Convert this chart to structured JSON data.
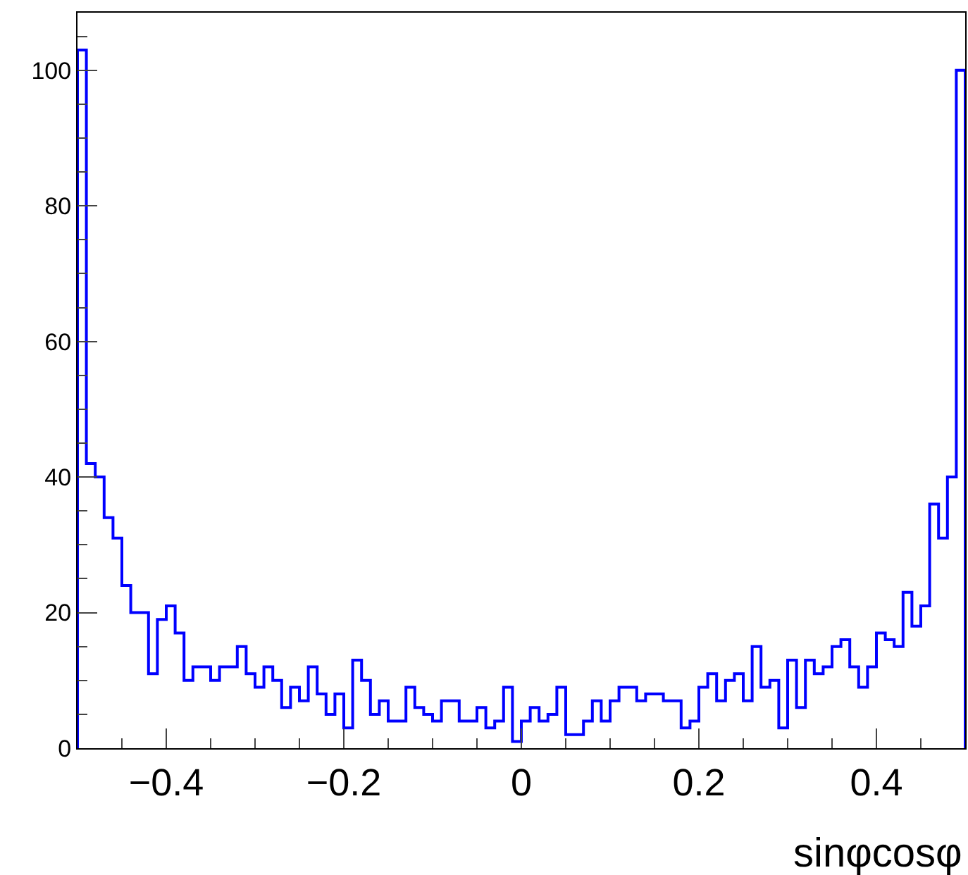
{
  "chart_data": {
    "type": "histogram",
    "xlabel": "sinφcosφ",
    "bins": [
      -0.5,
      -0.49,
      -0.48,
      -0.47,
      -0.46,
      -0.45,
      -0.44,
      -0.43,
      -0.42,
      -0.41,
      -0.4,
      -0.39,
      -0.38,
      -0.37,
      -0.36,
      -0.35,
      -0.34,
      -0.33,
      -0.32,
      -0.31,
      -0.3,
      -0.29,
      -0.28,
      -0.27,
      -0.26,
      -0.25,
      -0.24,
      -0.23,
      -0.22,
      -0.21,
      -0.2,
      -0.19,
      -0.18,
      -0.17,
      -0.16,
      -0.15,
      -0.14,
      -0.13,
      -0.12,
      -0.11,
      -0.1,
      -0.09,
      -0.08,
      -0.07,
      -0.06,
      -0.05,
      -0.04,
      -0.03,
      -0.02,
      -0.01,
      0,
      0.01,
      0.02,
      0.03,
      0.04,
      0.05,
      0.06,
      0.07,
      0.08,
      0.09,
      0.1,
      0.11,
      0.12,
      0.13,
      0.14,
      0.15,
      0.16,
      0.17,
      0.18,
      0.19,
      0.2,
      0.21,
      0.22,
      0.23,
      0.24,
      0.25,
      0.26,
      0.27,
      0.28,
      0.29,
      0.3,
      0.31,
      0.32,
      0.33,
      0.34,
      0.35,
      0.36,
      0.37,
      0.38,
      0.39,
      0.4,
      0.41,
      0.42,
      0.43,
      0.44,
      0.45,
      0.46,
      0.47,
      0.48,
      0.49,
      0.5
    ],
    "values": [
      103,
      42,
      40,
      34,
      31,
      24,
      20,
      20,
      11,
      19,
      21,
      17,
      10,
      12,
      12,
      10,
      12,
      12,
      15,
      11,
      9,
      12,
      10,
      6,
      9,
      7,
      12,
      8,
      5,
      8,
      3,
      13,
      10,
      5,
      7,
      4,
      4,
      9,
      6,
      5,
      4,
      7,
      7,
      4,
      4,
      6,
      3,
      4,
      9,
      1,
      4,
      6,
      4,
      5,
      9,
      2,
      2,
      4,
      7,
      4,
      7,
      9,
      9,
      7,
      8,
      8,
      7,
      7,
      3,
      4,
      9,
      11,
      7,
      10,
      11,
      7,
      15,
      9,
      10,
      3,
      13,
      6,
      13,
      11,
      12,
      15,
      16,
      12,
      9,
      12,
      17,
      16,
      15,
      23,
      18,
      21,
      36,
      31,
      40,
      100
    ],
    "color": "#0000ff",
    "xlim": [
      -0.5,
      0.5
    ],
    "xticks": [
      {
        "value": -0.4,
        "label": "−0.4"
      },
      {
        "value": -0.2,
        "label": "−0.2"
      },
      0,
      0.2,
      0.4
    ],
    "ylim": [
      0,
      108.5
    ],
    "yticks": [
      0,
      20,
      40,
      60,
      80,
      100
    ]
  }
}
